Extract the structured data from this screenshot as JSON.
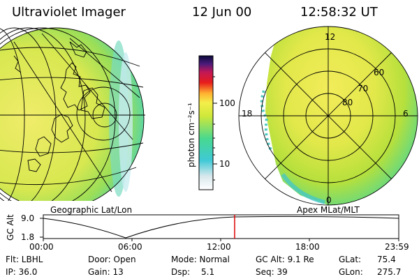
{
  "header": {
    "instrument": "Ultraviolet Imager",
    "date": "12 Jun 00",
    "time": "12:58:32 UT"
  },
  "colorbar": {
    "unit_label": "photon cm⁻²s⁻¹",
    "ticks": [
      "100",
      "10"
    ],
    "scale": "log"
  },
  "panels": {
    "left_caption": "Geographic Lat/Lon",
    "right_caption": "Apex MLat/MLT",
    "mlt_labels": [
      "12",
      "18",
      "6",
      "0"
    ],
    "mlat_labels": [
      "60",
      "70",
      "80"
    ]
  },
  "altitude_plot": {
    "ylabel": "GC Alt",
    "ytick_top": "9.0",
    "ytick_bottom": "1.8",
    "xticks": [
      "00:00",
      "06:00",
      "12:00",
      "18:00",
      "23:59"
    ],
    "marker_time": "12:58:32",
    "marker_color": "#dd0000"
  },
  "status": {
    "flt": "Flt: LBHL",
    "ip": "IP: 36.0",
    "door": "Door: Open",
    "gain": "Gain: 13",
    "mode": "Mode: Normal",
    "dsp": "Dsp:",
    "dsp_value": "5.1",
    "gc_alt": "GC Alt: 9.1 Re",
    "seq": "Seq: 39",
    "glat": "GLat:",
    "glat_value": "75.4",
    "glon": "GLon:",
    "glon_value": "275.7"
  }
}
